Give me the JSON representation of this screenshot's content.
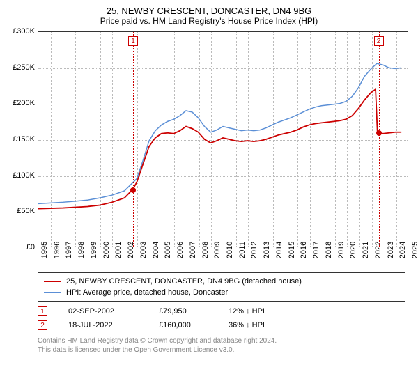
{
  "title": "25, NEWBY CRESCENT, DONCASTER, DN4 9BG",
  "subtitle": "Price paid vs. HM Land Registry's House Price Index (HPI)",
  "chart": {
    "type": "line",
    "background_color": "#ffffff",
    "border_color": "#333333",
    "grid_color": "#bbbbbb",
    "label_fontsize": 11,
    "x": {
      "min": 1995,
      "max": 2025,
      "ticks": [
        1995,
        1996,
        1997,
        1998,
        1999,
        2000,
        2001,
        2002,
        2003,
        2004,
        2005,
        2006,
        2007,
        2008,
        2009,
        2010,
        2011,
        2012,
        2013,
        2014,
        2015,
        2016,
        2017,
        2018,
        2019,
        2020,
        2021,
        2022,
        2023,
        2024,
        2025
      ]
    },
    "y": {
      "min": 0,
      "max": 300000,
      "ticks": [
        0,
        50000,
        100000,
        150000,
        200000,
        250000,
        300000
      ],
      "labels": [
        "£0",
        "£50K",
        "£100K",
        "£150K",
        "£200K",
        "£250K",
        "£300K"
      ]
    },
    "series": [
      {
        "name": "25, NEWBY CRESCENT, DONCASTER, DN4 9BG (detached house)",
        "color": "#cc0000",
        "width": 1.8,
        "points": [
          [
            1995,
            53000
          ],
          [
            1996,
            53500
          ],
          [
            1997,
            54000
          ],
          [
            1998,
            55000
          ],
          [
            1999,
            56000
          ],
          [
            2000,
            58000
          ],
          [
            2001,
            62000
          ],
          [
            2002,
            68000
          ],
          [
            2002.67,
            79950
          ],
          [
            2003,
            90000
          ],
          [
            2003.5,
            115000
          ],
          [
            2004,
            140000
          ],
          [
            2004.5,
            152000
          ],
          [
            2005,
            158000
          ],
          [
            2005.5,
            159000
          ],
          [
            2006,
            158000
          ],
          [
            2006.5,
            162000
          ],
          [
            2007,
            168000
          ],
          [
            2007.5,
            165000
          ],
          [
            2008,
            160000
          ],
          [
            2008.5,
            150000
          ],
          [
            2009,
            145000
          ],
          [
            2009.5,
            148000
          ],
          [
            2010,
            152000
          ],
          [
            2010.5,
            150000
          ],
          [
            2011,
            148000
          ],
          [
            2011.5,
            147000
          ],
          [
            2012,
            148000
          ],
          [
            2012.5,
            147000
          ],
          [
            2013,
            148000
          ],
          [
            2013.5,
            150000
          ],
          [
            2014,
            153000
          ],
          [
            2014.5,
            156000
          ],
          [
            2015,
            158000
          ],
          [
            2015.5,
            160000
          ],
          [
            2016,
            163000
          ],
          [
            2016.5,
            167000
          ],
          [
            2017,
            170000
          ],
          [
            2017.5,
            172000
          ],
          [
            2018,
            173000
          ],
          [
            2018.5,
            174000
          ],
          [
            2019,
            175000
          ],
          [
            2019.5,
            176000
          ],
          [
            2020,
            178000
          ],
          [
            2020.5,
            183000
          ],
          [
            2021,
            193000
          ],
          [
            2021.5,
            205000
          ],
          [
            2022,
            215000
          ],
          [
            2022.4,
            220000
          ],
          [
            2022.55,
            160000
          ],
          [
            2023,
            158000
          ],
          [
            2023.5,
            159000
          ],
          [
            2024,
            160000
          ],
          [
            2024.5,
            160000
          ]
        ]
      },
      {
        "name": "HPI: Average price, detached house, Doncaster",
        "color": "#5b8fd6",
        "width": 1.5,
        "points": [
          [
            1995,
            60000
          ],
          [
            1996,
            61000
          ],
          [
            1997,
            62000
          ],
          [
            1998,
            63500
          ],
          [
            1999,
            65000
          ],
          [
            2000,
            68000
          ],
          [
            2001,
            72000
          ],
          [
            2002,
            78000
          ],
          [
            2003,
            95000
          ],
          [
            2003.5,
            120000
          ],
          [
            2004,
            148000
          ],
          [
            2004.5,
            162000
          ],
          [
            2005,
            170000
          ],
          [
            2005.5,
            175000
          ],
          [
            2006,
            178000
          ],
          [
            2006.5,
            183000
          ],
          [
            2007,
            190000
          ],
          [
            2007.5,
            188000
          ],
          [
            2008,
            180000
          ],
          [
            2008.5,
            168000
          ],
          [
            2009,
            160000
          ],
          [
            2009.5,
            163000
          ],
          [
            2010,
            168000
          ],
          [
            2010.5,
            166000
          ],
          [
            2011,
            164000
          ],
          [
            2011.5,
            162000
          ],
          [
            2012,
            163000
          ],
          [
            2012.5,
            162000
          ],
          [
            2013,
            163000
          ],
          [
            2013.5,
            166000
          ],
          [
            2014,
            170000
          ],
          [
            2014.5,
            174000
          ],
          [
            2015,
            177000
          ],
          [
            2015.5,
            180000
          ],
          [
            2016,
            184000
          ],
          [
            2016.5,
            188000
          ],
          [
            2017,
            192000
          ],
          [
            2017.5,
            195000
          ],
          [
            2018,
            197000
          ],
          [
            2018.5,
            198000
          ],
          [
            2019,
            199000
          ],
          [
            2019.5,
            200000
          ],
          [
            2020,
            203000
          ],
          [
            2020.5,
            210000
          ],
          [
            2021,
            222000
          ],
          [
            2021.5,
            238000
          ],
          [
            2022,
            248000
          ],
          [
            2022.5,
            256000
          ],
          [
            2023,
            254000
          ],
          [
            2023.5,
            250000
          ],
          [
            2024,
            249000
          ],
          [
            2024.5,
            250000
          ]
        ]
      }
    ],
    "markers": [
      {
        "label": "1",
        "x": 2002.67,
        "y": 79950
      },
      {
        "label": "2",
        "x": 2022.55,
        "y": 160000
      }
    ]
  },
  "legend": {
    "items": [
      {
        "color": "#cc0000",
        "text": "25, NEWBY CRESCENT, DONCASTER, DN4 9BG (detached house)"
      },
      {
        "color": "#5b8fd6",
        "text": "HPI: Average price, detached house, Doncaster"
      }
    ]
  },
  "sales": [
    {
      "marker": "1",
      "date": "02-SEP-2002",
      "price": "£79,950",
      "pct": "12% ↓ HPI"
    },
    {
      "marker": "2",
      "date": "18-JUL-2022",
      "price": "£160,000",
      "pct": "36% ↓ HPI"
    }
  ],
  "disclaimer": {
    "line1": "Contains HM Land Registry data © Crown copyright and database right 2024.",
    "line2": "This data is licensed under the Open Government Licence v3.0."
  }
}
